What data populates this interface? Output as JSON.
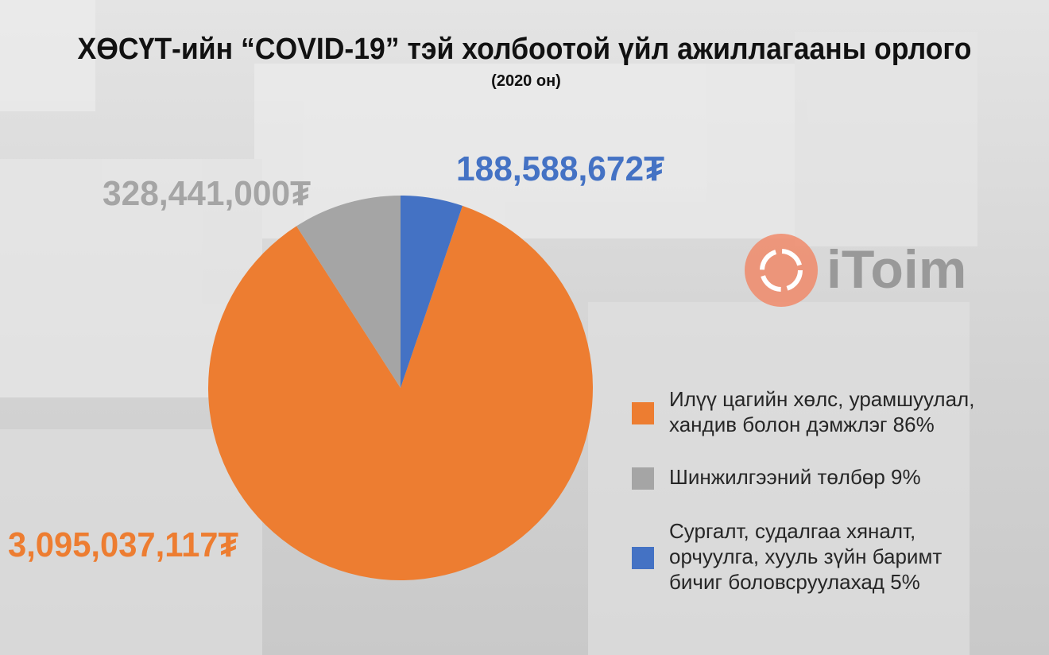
{
  "chart_data": {
    "type": "pie",
    "title": "ХӨСҮТ-ийн “COVID-19” тэй холбоотой үйл ажиллагааны орлого",
    "subtitle": "(2020 он)",
    "categories": [
      "Илүү цагийн хөлс, урамшуулал,\nхандив болон дэмжлэг 86%",
      "Шинжилгээний төлбөр 9%",
      "Сургалт, судалгаа хяналт,\nорчуулга, хууль зүйн баримт\nбичиг боловсруулахад 5%"
    ],
    "values": [
      3095037117,
      328441000,
      188588672
    ],
    "value_labels": [
      "3,095,037,117₮",
      "328,441,000₮",
      "188,588,672₮"
    ],
    "colors": [
      "#ed7d31",
      "#a5a5a5",
      "#4472c4"
    ]
  },
  "watermark": "iToim"
}
